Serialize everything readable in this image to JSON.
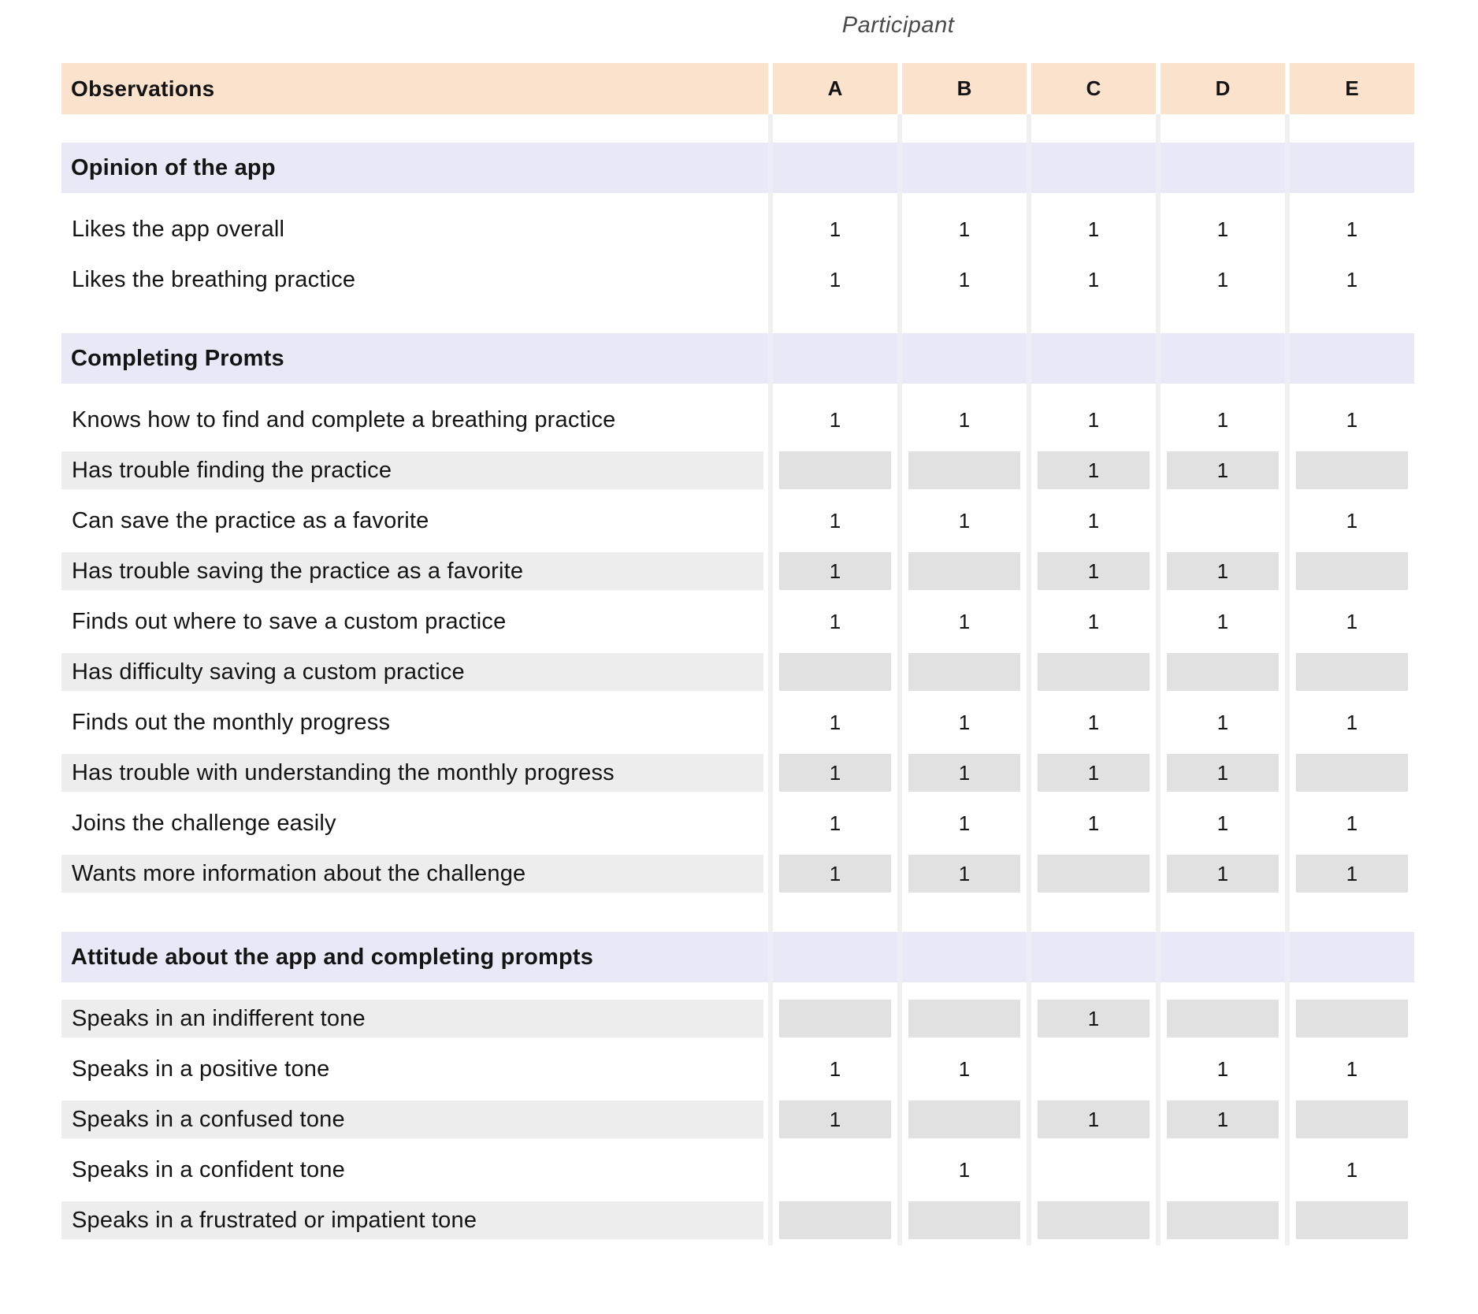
{
  "header": {
    "group_label": "Participant",
    "observations_label": "Observations",
    "participants": [
      "A",
      "B",
      "C",
      "D",
      "E"
    ]
  },
  "colors": {
    "header_bg": "#fbe2cc",
    "section_bg": "#e8e8f7",
    "gray_label_bg": "#ededed",
    "gray_cell_bg": "#e1e1e1",
    "separator": "#f0f0f0"
  },
  "sections": [
    {
      "title": "Opinion of the app",
      "rows": [
        {
          "label": "Likes the app overall",
          "shaded": false,
          "values": [
            "1",
            "1",
            "1",
            "1",
            "1"
          ]
        },
        {
          "label": "Likes the breathing practice",
          "shaded": false,
          "values": [
            "1",
            "1",
            "1",
            "1",
            "1"
          ]
        }
      ]
    },
    {
      "title": "Completing Promts",
      "rows": [
        {
          "label": "Knows how to find and complete a breathing practice",
          "shaded": false,
          "values": [
            "1",
            "1",
            "1",
            "1",
            "1"
          ]
        },
        {
          "label": "Has trouble finding the practice",
          "shaded": true,
          "values": [
            "",
            "",
            "1",
            "1",
            ""
          ]
        },
        {
          "label": "Can save the practice as a favorite",
          "shaded": false,
          "values": [
            "1",
            "1",
            "1",
            "",
            "1"
          ]
        },
        {
          "label": "Has trouble saving the practice as a favorite",
          "shaded": true,
          "values": [
            "1",
            "",
            "1",
            "1",
            ""
          ]
        },
        {
          "label": "Finds out where to save a custom practice",
          "shaded": false,
          "values": [
            "1",
            "1",
            "1",
            "1",
            "1"
          ]
        },
        {
          "label": "Has difficulty saving a custom practice",
          "shaded": true,
          "values": [
            "",
            "",
            "",
            "",
            ""
          ]
        },
        {
          "label": "Finds out the monthly progress",
          "shaded": false,
          "values": [
            "1",
            "1",
            "1",
            "1",
            "1"
          ]
        },
        {
          "label": "Has trouble with understanding the monthly progress",
          "shaded": true,
          "values": [
            "1",
            "1",
            "1",
            "1",
            ""
          ]
        },
        {
          "label": "Joins the challenge easily",
          "shaded": false,
          "values": [
            "1",
            "1",
            "1",
            "1",
            "1"
          ]
        },
        {
          "label": "Wants more information about the challenge",
          "shaded": true,
          "values": [
            "1",
            "1",
            "",
            "1",
            "1"
          ]
        }
      ]
    },
    {
      "title": "Attitude about the app and completing prompts",
      "rows": [
        {
          "label": "Speaks in an indifferent tone",
          "shaded": true,
          "values": [
            "",
            "",
            "1",
            "",
            ""
          ]
        },
        {
          "label": "Speaks in a positive tone",
          "shaded": false,
          "values": [
            "1",
            "1",
            "",
            "1",
            "1"
          ]
        },
        {
          "label": "Speaks in a confused tone",
          "shaded": true,
          "values": [
            "1",
            "",
            "1",
            "1",
            ""
          ]
        },
        {
          "label": "Speaks in a confident tone",
          "shaded": false,
          "values": [
            "",
            "1",
            "",
            "",
            "1"
          ]
        },
        {
          "label": "Speaks in a frustrated or impatient tone",
          "shaded": true,
          "values": [
            "",
            "",
            "",
            "",
            ""
          ]
        }
      ]
    }
  ]
}
